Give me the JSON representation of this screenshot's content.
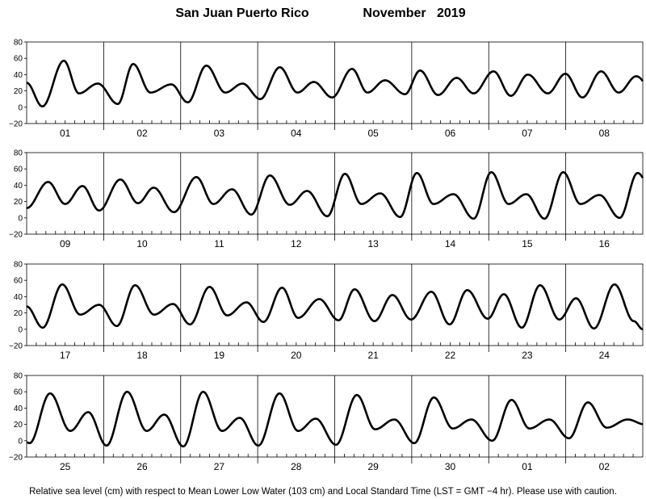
{
  "title": {
    "location": "San Juan Puerto Rico",
    "month_year": "November   2019"
  },
  "caption": "Relative sea level (cm) with respect to Mean Lower Low Water (103 cm) and Local Standard Time (LST = GMT −4 hr). Please use with caution.",
  "colors": {
    "line": "#000000",
    "frame": "#000000",
    "background": "#ffffff"
  },
  "chart_data": {
    "type": "line",
    "ylim": [
      -20,
      80
    ],
    "yticks": [
      -20,
      0,
      20,
      40,
      60,
      80
    ],
    "ytick_labels": [
      "−20",
      "0",
      "20",
      "40",
      "60",
      "80"
    ],
    "grid": "vertical lines at day boundaries",
    "minor_ticks_per_day": 8,
    "rows": [
      {
        "days": [
          "01",
          "02",
          "03",
          "04",
          "05",
          "06",
          "07",
          "08"
        ],
        "tide_times_hours": [
          -6.2,
          0,
          4.9,
          11.6,
          16.3,
          22.2,
          28.4,
          33.2,
          38.6,
          45.1,
          50.2,
          56.0,
          61.9,
          67.3,
          72.8,
          78.9,
          84.4,
          89.5,
          95.2,
          101.4,
          106.2,
          111.7,
          117.9,
          122.6,
          128.2,
          134.0,
          139.3,
          145.5,
          150.9,
          156.2,
          162.4,
          167.9,
          173.2,
          179.0,
          184.5,
          190.0,
          196.5
        ],
        "tide_levels_cm": [
          1,
          30,
          1,
          57,
          17,
          29,
          4,
          53,
          18,
          28,
          6,
          51,
          18,
          29,
          10,
          49,
          18,
          31,
          12,
          47,
          18,
          33,
          16,
          45,
          15,
          36,
          17,
          44,
          14,
          40,
          17,
          41,
          12,
          44,
          18,
          38,
          10
        ]
      },
      {
        "days": [
          "09",
          "10",
          "11",
          "12",
          "13",
          "14",
          "15",
          "16"
        ],
        "tide_times_hours": [
          -6,
          0,
          6.7,
          12.0,
          17.4,
          22.6,
          29.2,
          34.7,
          39.6,
          45.9,
          52.9,
          58.2,
          64.0,
          70.0,
          75.8,
          82.0,
          87.4,
          93.7,
          99.2,
          104.3,
          110.2,
          116.4,
          121.6,
          126.8,
          133.0,
          139.3,
          144.8,
          150.2,
          155.7,
          161.4,
          167.2,
          172.6,
          178.5,
          184.8,
          190.4,
          196.5
        ],
        "tide_levels_cm": [
          10,
          12,
          44,
          17,
          39,
          9,
          47,
          18,
          37,
          7,
          50,
          17,
          35,
          4,
          52,
          16,
          33,
          2,
          54,
          17,
          30,
          1,
          55,
          17,
          29,
          -1,
          56,
          17,
          29,
          -1,
          56,
          17,
          28,
          0,
          55,
          17
        ]
      },
      {
        "days": [
          "17",
          "18",
          "19",
          "20",
          "21",
          "22",
          "23",
          "24"
        ],
        "tide_times_hours": [
          -6,
          0,
          5.0,
          11.1,
          16.7,
          22.6,
          28.1,
          33.8,
          39.7,
          45.6,
          50.9,
          57.0,
          62.5,
          68.5,
          73.8,
          79.6,
          84.6,
          91.2,
          97.2,
          102.2,
          108.4,
          114.0,
          119.8,
          126.1,
          131.8,
          137.3,
          143.7,
          148.7,
          154.3,
          160.0,
          166.0,
          171.2,
          176.8,
          183.2,
          189.2,
          192
        ],
        "tide_levels_cm": [
          28,
          28,
          2,
          55,
          18,
          30,
          4,
          54,
          18,
          31,
          6,
          52,
          17,
          33,
          9,
          51,
          14,
          37,
          11,
          49,
          10,
          42,
          12,
          46,
          6,
          48,
          13,
          43,
          2,
          54,
          12,
          38,
          1,
          55,
          10,
          0
        ]
      },
      {
        "days": [
          "25",
          "26",
          "27",
          "28",
          "29",
          "30",
          "01",
          "02"
        ],
        "tide_times_hours": [
          -6,
          0,
          0.9,
          7.3,
          13.6,
          19.2,
          24.9,
          31.3,
          37.4,
          42.9,
          48.8,
          55.0,
          60.9,
          66.4,
          72.2,
          78.8,
          84.6,
          90.1,
          96.4,
          102.9,
          108.6,
          114.6,
          120.8,
          126.9,
          132.8,
          138.6,
          145.1,
          151.1,
          156.7,
          162.9,
          169.0,
          174.9,
          180.8,
          187.3,
          192.6,
          198
        ],
        "tide_levels_cm": [
          -2,
          -2,
          -3,
          58,
          12,
          35,
          -6,
          60,
          12,
          32,
          -7,
          60,
          12,
          28,
          -6,
          58,
          12,
          27,
          -5,
          56,
          14,
          26,
          -3,
          53,
          15,
          26,
          0,
          50,
          15,
          26,
          3,
          47,
          16,
          26,
          20,
          22
        ]
      }
    ]
  }
}
